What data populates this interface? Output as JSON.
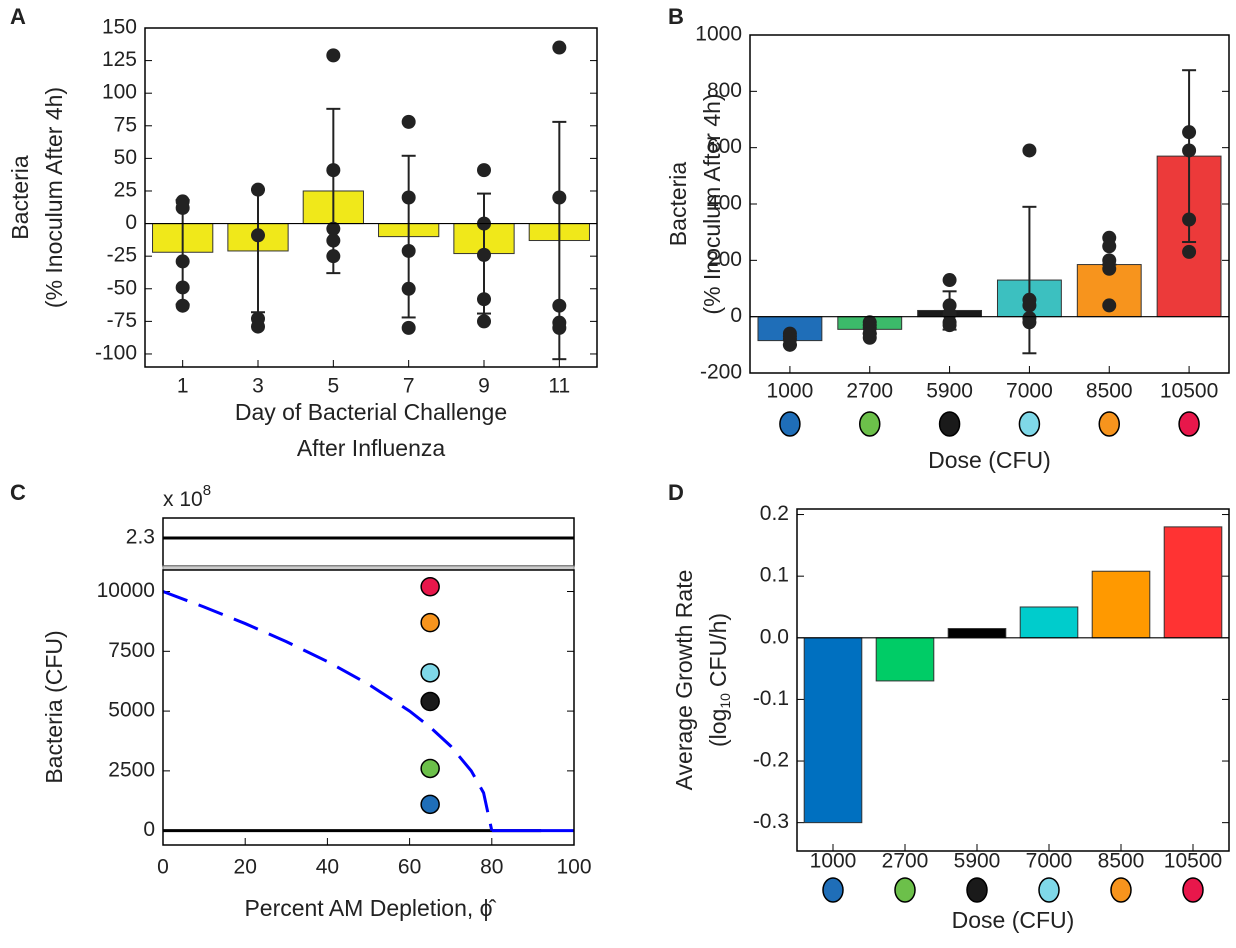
{
  "chart_data": [
    {
      "type": "bar",
      "panel_label": "A",
      "categories": [
        "1",
        "3",
        "5",
        "7",
        "9",
        "11"
      ],
      "values": [
        -22,
        -21,
        25,
        -10,
        -23,
        -13
      ],
      "errors": [
        40,
        47,
        63,
        62,
        46,
        91
      ],
      "color": "#f0e81a",
      "points": [
        [
          17,
          12,
          -29,
          -49,
          -63
        ],
        [
          26,
          -9,
          -73,
          -79
        ],
        [
          129,
          41,
          -4,
          -13,
          -25
        ],
        [
          78,
          20,
          -21,
          -50,
          -80
        ],
        [
          41,
          0,
          -24,
          -58,
          -75
        ],
        [
          135,
          20,
          -63,
          -76,
          -80
        ]
      ],
      "ylim": [
        -110,
        150
      ],
      "yticks": [
        -100,
        -75,
        -50,
        -25,
        0,
        25,
        50,
        75,
        100,
        125,
        150
      ],
      "ylabel": [
        "Bacteria",
        "(% Inoculum After 4h)"
      ],
      "xlabel": [
        "Day of Bacterial Challenge",
        "After Influenza"
      ]
    },
    {
      "type": "bar",
      "panel_label": "B",
      "categories": [
        "1000",
        "2700",
        "5900",
        "7000",
        "8500",
        "10500"
      ],
      "values": [
        -85,
        -45,
        22,
        130,
        185,
        570
      ],
      "errors": [
        15,
        15,
        68,
        260,
        0,
        305
      ],
      "colors": [
        "#1f6eb8",
        "#3cba6a",
        "#1a1a1a",
        "#3cc0c0",
        "#f7941d",
        "#ec3a3a"
      ],
      "marker_colors": [
        "#1f6eb8",
        "#6cc04a",
        "#1a1a1a",
        "#7fd8e8",
        "#f7941d",
        "#e8174b"
      ],
      "points": [
        [
          -60,
          -80,
          -100
        ],
        [
          -20,
          -40,
          -60,
          -75
        ],
        [
          130,
          40,
          10,
          -20,
          -30
        ],
        [
          590,
          60,
          40,
          -5,
          -20
        ],
        [
          280,
          250,
          200,
          170,
          40
        ],
        [
          655,
          590,
          345,
          230
        ]
      ],
      "ylim": [
        -200,
        1000
      ],
      "yticks": [
        -200,
        0,
        200,
        400,
        600,
        800,
        1000
      ],
      "ylabel": [
        "Bacteria",
        "(% Inoculum After 4h)"
      ],
      "xlabel": [
        "Dose (CFU)"
      ]
    },
    {
      "type": "line",
      "panel_label": "C",
      "xlim": [
        0,
        100
      ],
      "xticks": [
        0,
        20,
        40,
        60,
        80,
        100
      ],
      "ylim": [
        -600,
        10900
      ],
      "yticks": [
        0,
        2500,
        5000,
        7500,
        10000
      ],
      "upper_ylim": [
        2.16,
        2.4
      ],
      "upper_yticks": [
        2.3
      ],
      "upper_axis_label": "x 10",
      "upper_axis_exponent": "8",
      "series": [
        {
          "color": "#000000",
          "axis": "upper",
          "x": [
            0,
            100
          ],
          "values": [
            2.3,
            2.3
          ]
        },
        {
          "color": "#000000",
          "x": [
            0,
            92
          ],
          "values": [
            0,
            0
          ]
        },
        {
          "color": "#0000ff",
          "dashed": true,
          "x": [
            0,
            10,
            20,
            30,
            40,
            50,
            60,
            65,
            70,
            75,
            78,
            80
          ],
          "values": [
            10000,
            9354,
            8660,
            7906,
            7071,
            6124,
            5000,
            4330,
            3536,
            2500,
            1581,
            0
          ]
        },
        {
          "color": "#0000ff",
          "x": [
            80,
            100
          ],
          "values": [
            0,
            0
          ]
        }
      ],
      "points": {
        "x": [
          65,
          65,
          65,
          65,
          65,
          65
        ],
        "values": [
          1100,
          2600,
          5400,
          6600,
          8700,
          10200
        ],
        "colors": [
          "#1f6eb8",
          "#6cc04a",
          "#1a1a1a",
          "#7fd8e8",
          "#f7941d",
          "#e8174b"
        ]
      },
      "ylabel": [
        "Bacteria (CFU)"
      ],
      "xlabel": [
        "Percent AM Depletion, ϕ̂"
      ]
    },
    {
      "type": "bar",
      "panel_label": "D",
      "categories": [
        "1000",
        "2700",
        "5900",
        "7000",
        "8500",
        "10500"
      ],
      "values": [
        -0.3,
        -0.07,
        0.015,
        0.05,
        0.108,
        0.18
      ],
      "colors": [
        "#0070c0",
        "#00cc66",
        "#000000",
        "#00cccc",
        "#ff9900",
        "#ff3333"
      ],
      "marker_colors": [
        "#1f6eb8",
        "#6cc04a",
        "#1a1a1a",
        "#7fd8e8",
        "#f7941d",
        "#e8174b"
      ],
      "ylim": [
        -0.346,
        0.209
      ],
      "yticks": [
        -0.3,
        -0.2,
        -0.1,
        {
          "value": 0,
          "label": "0.0"
        },
        0.1,
        0.2
      ],
      "ylabel": [
        "Average Growth Rate"
      ],
      "ylabel_sub": [
        "(log",
        "10",
        "CFU/h)"
      ],
      "xlabel": [
        "Dose (CFU)"
      ]
    }
  ]
}
